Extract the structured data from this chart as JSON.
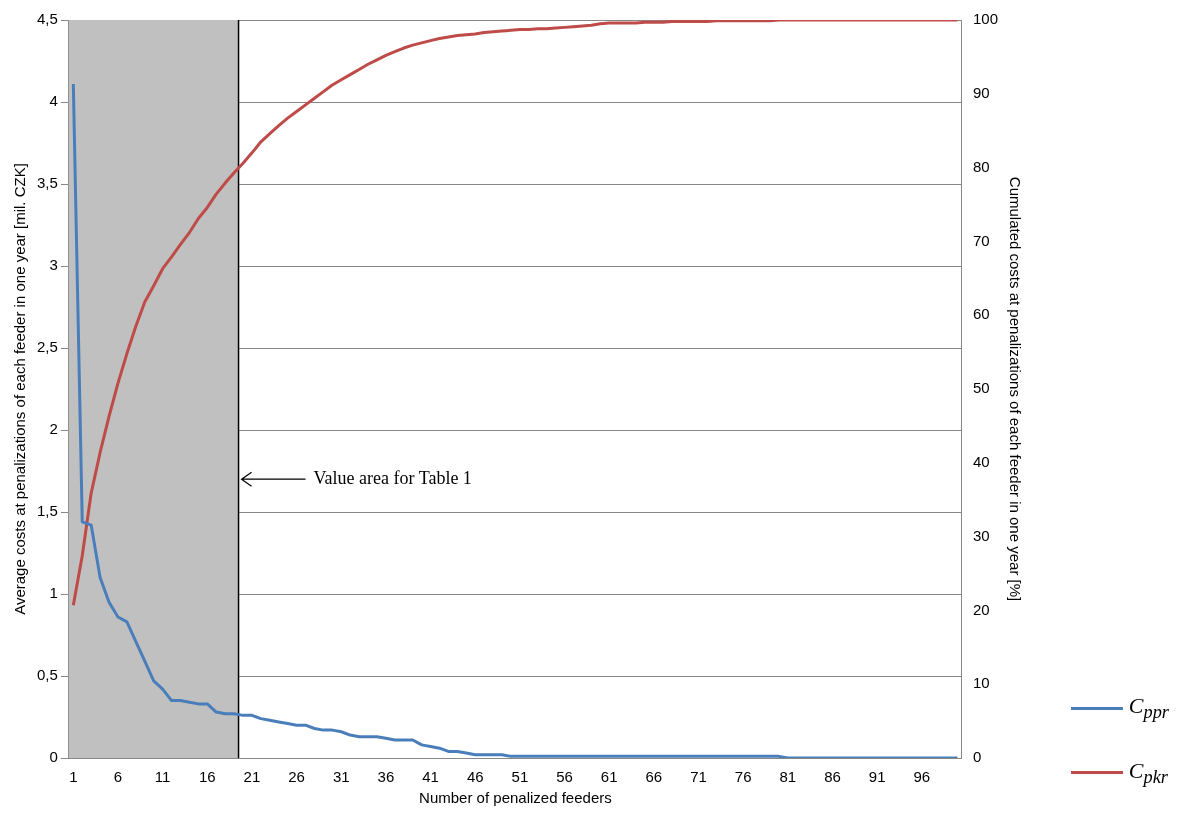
{
  "chart_data": {
    "type": "line",
    "xlabel": "Number of penalized feeders",
    "ylabel": "Average costs at penalizations of each feeder in one year [mil. CZK]",
    "y2label": "Cumulated costs at penalizations of each feeder in one year [%]",
    "x": [
      1,
      2,
      3,
      4,
      5,
      6,
      7,
      8,
      9,
      10,
      11,
      12,
      13,
      14,
      15,
      16,
      17,
      18,
      19,
      20,
      21,
      22,
      23,
      24,
      25,
      26,
      27,
      28,
      29,
      30,
      31,
      32,
      33,
      34,
      35,
      36,
      37,
      38,
      39,
      40,
      41,
      42,
      43,
      44,
      45,
      46,
      47,
      48,
      49,
      50,
      51,
      52,
      53,
      54,
      55,
      56,
      57,
      58,
      59,
      60,
      61,
      62,
      63,
      64,
      65,
      66,
      67,
      68,
      69,
      70,
      71,
      72,
      73,
      74,
      75,
      76,
      77,
      78,
      79,
      80,
      81,
      82,
      83,
      84,
      85,
      86,
      87,
      88,
      89,
      90,
      91,
      92,
      93,
      94,
      95,
      96,
      97,
      98,
      99,
      100
    ],
    "xlim": [
      0.5,
      100.5
    ],
    "xticks": [
      1,
      6,
      11,
      16,
      21,
      26,
      31,
      36,
      41,
      46,
      51,
      56,
      61,
      66,
      71,
      76,
      81,
      86,
      91,
      96
    ],
    "ylim": [
      0,
      4.5
    ],
    "yticks": [
      0,
      {
        "value": 0.5,
        "label": "0,5"
      },
      1,
      {
        "value": 1.5,
        "label": "1,5"
      },
      2,
      {
        "value": 2.5,
        "label": "2,5"
      },
      3,
      {
        "value": 3.5,
        "label": "3,5"
      },
      4,
      {
        "value": 4.5,
        "label": "4,5"
      }
    ],
    "y2lim": [
      0,
      100
    ],
    "y2ticks": [
      0,
      10,
      20,
      30,
      40,
      50,
      60,
      70,
      80,
      90,
      100
    ],
    "grid": "y",
    "legend": "bottom right",
    "marker": "none",
    "line_style": "solid",
    "bands": [
      {
        "axis": "x",
        "from": 0.5,
        "to": 19.5,
        "color": "#c0c0c0"
      }
    ],
    "ref_lines": [
      {
        "axis": "x",
        "value": 19.5,
        "color": "#000000"
      }
    ],
    "annotations": [
      {
        "text": "Value area for Table 1",
        "x": 19.5,
        "y": 1.7
      }
    ],
    "series": [
      {
        "name": "C$_{ppr}$",
        "color": "#4a7ebb",
        "values": [
          4.11,
          1.44,
          1.42,
          1.1,
          0.95,
          0.86,
          0.83,
          0.71,
          0.59,
          0.47,
          0.42,
          0.35,
          0.35,
          0.34,
          0.33,
          0.33,
          0.28,
          0.27,
          0.27,
          0.26,
          0.26,
          0.24,
          0.23,
          0.22,
          0.21,
          0.2,
          0.2,
          0.18,
          0.17,
          0.17,
          0.16,
          0.14,
          0.13,
          0.13,
          0.13,
          0.12,
          0.11,
          0.11,
          0.11,
          0.08,
          0.07,
          0.06,
          0.04,
          0.04,
          0.03,
          0.02,
          0.02,
          0.02,
          0.02,
          0.01,
          0.01,
          0.01,
          0.01,
          0.01,
          0.01,
          0.01,
          0.01,
          0.01,
          0.01,
          0.01,
          0.01,
          0.01,
          0.01,
          0.01,
          0.01,
          0.01,
          0.01,
          0.01,
          0.01,
          0.01,
          0.01,
          0.01,
          0.01,
          0.01,
          0.01,
          0.01,
          0.01,
          0.01,
          0.01,
          0.01,
          0,
          0,
          0,
          0,
          0,
          0,
          0,
          0,
          0,
          0,
          0,
          0,
          0,
          0,
          0,
          0,
          0,
          0,
          0,
          0
        ]
      },
      {
        "name": "C$_{pkr}$",
        "color": "#be4b48",
        "axis": "y2",
        "values": [
          20.7,
          27.4,
          35.9,
          41.4,
          46.3,
          50.8,
          54.8,
          58.5,
          61.8,
          64,
          66.3,
          67.9,
          69.6,
          71.2,
          73.1,
          74.6,
          76.4,
          77.9,
          79.3,
          80.6,
          82,
          83.5,
          84.6,
          85.7,
          86.7,
          87.6,
          88.5,
          89.4,
          90.3,
          91.2,
          91.9,
          92.6,
          93.3,
          94,
          94.6,
          95.2,
          95.7,
          96.2,
          96.6,
          96.9,
          97.2,
          97.5,
          97.7,
          97.9,
          98,
          98.1,
          98.3,
          98.4,
          98.5,
          98.6,
          98.7,
          98.7,
          98.8,
          98.8,
          98.9,
          99,
          99.1,
          99.2,
          99.3,
          99.5,
          99.6,
          99.6,
          99.6,
          99.6,
          99.7,
          99.7,
          99.7,
          99.8,
          99.8,
          99.8,
          99.8,
          99.8,
          99.9,
          99.9,
          99.9,
          99.9,
          99.9,
          99.9,
          99.9,
          100,
          100,
          100,
          100,
          100,
          100,
          100,
          100,
          100,
          100,
          100,
          100,
          100,
          100,
          100,
          100,
          100,
          100,
          100,
          100,
          100
        ]
      }
    ]
  }
}
